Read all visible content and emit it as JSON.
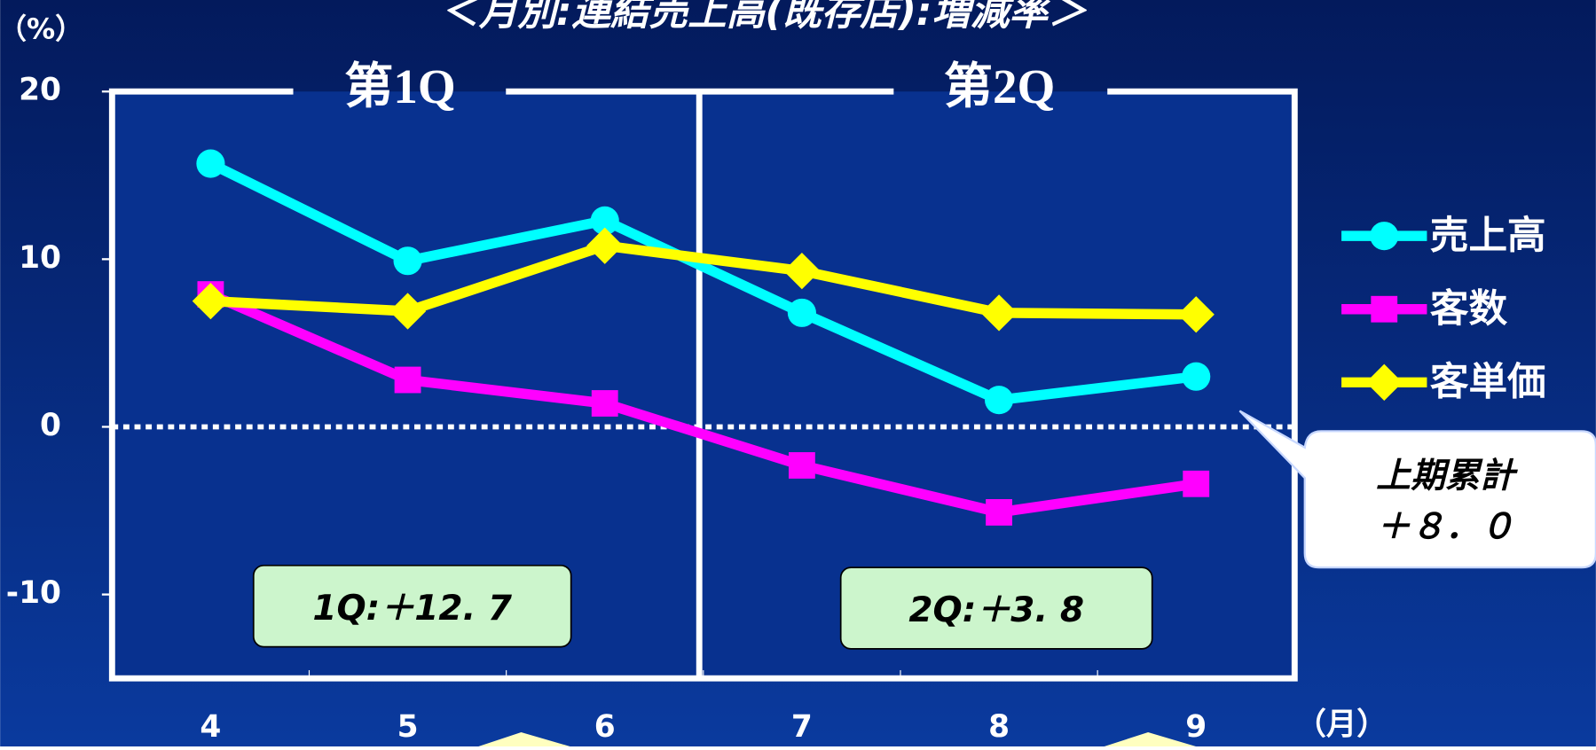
{
  "chart_data": {
    "type": "line",
    "title": "＜月別:連結売上高(既存店):増減率＞",
    "y_label": "（%）",
    "x_label": "（月）",
    "categories": [
      "4",
      "5",
      "6",
      "7",
      "8",
      "9"
    ],
    "series": [
      {
        "name": "売上高",
        "color": "#00ffff",
        "marker": "circle",
        "values": [
          15.7,
          9.9,
          12.3,
          6.8,
          1.6,
          3.0
        ]
      },
      {
        "name": "客数",
        "color": "#ff00ff",
        "marker": "square",
        "values": [
          7.9,
          2.8,
          1.4,
          -2.3,
          -5.1,
          -3.4
        ]
      },
      {
        "name": "客単価",
        "color": "#ffff00",
        "marker": "diamond",
        "values": [
          7.5,
          6.9,
          10.8,
          9.3,
          6.8,
          6.7
        ]
      }
    ],
    "ylim": [
      -15,
      20
    ],
    "yticks": [
      -10,
      0,
      10,
      20
    ],
    "quarters": [
      "第1Q",
      "第2Q"
    ],
    "quarter_notes": [
      "1Q:＋12. 7",
      "2Q:＋3. 8"
    ],
    "callout": [
      "上期累計",
      "＋８．０"
    ]
  }
}
